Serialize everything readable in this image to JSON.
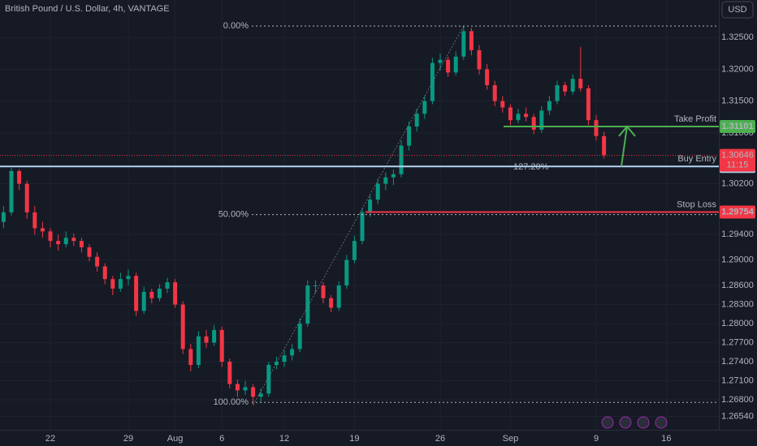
{
  "header": {
    "title": "British Pound / U.S. Dollar, 4h, VANTAGE",
    "currency": "USD"
  },
  "chart_data": {
    "type": "candlestick",
    "categories": [
      null,
      null,
      null,
      null,
      null,
      null,
      "22",
      null,
      null,
      null,
      null,
      null,
      null,
      null,
      null,
      null,
      "29",
      null,
      null,
      null,
      null,
      null,
      "Aug",
      null,
      null,
      null,
      null,
      null,
      "6",
      null,
      null,
      null,
      null,
      null,
      null,
      null,
      "12",
      null,
      null,
      null,
      null,
      null,
      null,
      null,
      null,
      "19",
      null,
      null,
      null,
      null,
      null,
      null,
      null,
      null,
      null,
      null,
      "26",
      null,
      null,
      null,
      null,
      null,
      null,
      null,
      null,
      "Sep",
      null,
      null,
      null,
      null,
      null,
      null,
      null,
      null,
      null,
      null,
      "9",
      null,
      null,
      null,
      null,
      null,
      null,
      null,
      null,
      "16",
      null,
      null
    ],
    "open": [
      1.296,
      1.2975,
      1.304,
      1.302,
      1.2975,
      1.295,
      1.2945,
      1.293,
      1.2925,
      1.2935,
      1.293,
      1.292,
      1.2905,
      1.289,
      1.287,
      1.2855,
      1.287,
      1.2875,
      1.282,
      1.285,
      1.284,
      1.2855,
      1.2865,
      1.283,
      1.276,
      1.2735,
      1.278,
      1.277,
      1.279,
      1.274,
      1.2705,
      1.2695,
      1.27,
      1.2685,
      1.269,
      1.2735,
      1.274,
      1.275,
      1.276,
      1.28,
      1.286,
      1.286,
      1.284,
      1.2825,
      1.286,
      1.29,
      1.293,
      1.2975,
      1.2995,
      1.302,
      1.303,
      1.3035,
      1.308,
      1.311,
      1.313,
      1.315,
      1.321,
      1.3215,
      1.3195,
      1.322,
      1.326,
      1.323,
      1.32,
      1.3175,
      1.315,
      1.314,
      1.312,
      1.313,
      1.3125,
      1.3105,
      1.3135,
      1.315,
      1.3175,
      1.3165,
      1.3185,
      1.317,
      1.312,
      1.3095,
      null,
      null,
      null,
      null,
      null,
      null,
      null,
      null,
      null,
      null
    ],
    "high": [
      1.2985,
      1.3045,
      1.3043,
      1.3025,
      1.2985,
      1.296,
      1.295,
      1.294,
      1.2945,
      1.2942,
      1.2935,
      1.2925,
      1.2912,
      1.2895,
      1.2875,
      1.288,
      1.2885,
      1.288,
      1.2858,
      1.2855,
      1.2862,
      1.2872,
      1.287,
      1.2835,
      1.2768,
      1.2788,
      1.279,
      1.2798,
      1.2795,
      1.2745,
      1.2712,
      1.271,
      1.2705,
      1.2698,
      1.274,
      1.2748,
      1.2758,
      1.2768,
      1.2808,
      1.2868,
      1.2868,
      1.2865,
      1.2845,
      1.2866,
      1.2908,
      1.2938,
      1.2982,
      1.3002,
      1.3028,
      1.3038,
      1.3042,
      1.3088,
      1.3118,
      1.3138,
      1.3158,
      1.3218,
      1.3225,
      1.322,
      1.3228,
      1.3268,
      1.3265,
      1.3238,
      1.3208,
      1.3182,
      1.3158,
      1.3145,
      1.3138,
      1.314,
      1.313,
      1.3142,
      1.3158,
      1.3182,
      1.318,
      1.3192,
      1.3235,
      1.3175,
      1.3128,
      1.3102,
      null,
      null,
      null,
      null,
      null,
      null,
      null,
      null,
      null,
      null
    ],
    "low": [
      1.295,
      1.297,
      1.301,
      1.2965,
      1.294,
      1.2935,
      1.292,
      1.2915,
      1.292,
      1.2922,
      1.2912,
      1.2898,
      1.2882,
      1.2862,
      1.2845,
      1.285,
      1.286,
      1.2812,
      1.2815,
      1.2832,
      1.2835,
      1.2848,
      1.2825,
      1.2752,
      1.2725,
      1.273,
      1.2762,
      1.2765,
      1.2732,
      1.2698,
      1.2685,
      1.2688,
      1.2672,
      1.2676,
      1.2685,
      1.2728,
      1.2732,
      1.2742,
      1.2755,
      1.2795,
      1.2848,
      1.2832,
      1.2818,
      1.282,
      1.2855,
      1.2895,
      1.2925,
      1.2968,
      1.2988,
      1.301,
      1.3018,
      1.303,
      1.3072,
      1.3102,
      1.3122,
      1.3145,
      1.3198,
      1.3188,
      1.319,
      1.3215,
      1.3222,
      1.3192,
      1.3168,
      1.3142,
      1.3132,
      1.3112,
      1.3115,
      1.3118,
      1.3098,
      1.31,
      1.3128,
      1.3145,
      1.3158,
      1.316,
      1.3165,
      1.3112,
      1.3088,
      1.306,
      null,
      null,
      null,
      null,
      null,
      null,
      null,
      null,
      null,
      null
    ],
    "close": [
      1.2975,
      1.304,
      1.302,
      1.2975,
      1.295,
      1.2945,
      1.293,
      1.2925,
      1.2935,
      1.293,
      1.292,
      1.2905,
      1.289,
      1.287,
      1.2855,
      1.287,
      1.2875,
      1.282,
      1.285,
      1.284,
      1.2855,
      1.2865,
      1.283,
      1.276,
      1.2735,
      1.278,
      1.277,
      1.279,
      1.274,
      1.2705,
      1.2695,
      1.27,
      1.2685,
      1.269,
      1.2735,
      1.274,
      1.275,
      1.276,
      1.28,
      1.286,
      1.286,
      1.284,
      1.2825,
      1.286,
      1.29,
      1.293,
      1.2975,
      1.2995,
      1.302,
      1.303,
      1.3035,
      1.308,
      1.311,
      1.313,
      1.315,
      1.321,
      1.3215,
      1.3195,
      1.322,
      1.326,
      1.323,
      1.32,
      1.3175,
      1.315,
      1.314,
      1.312,
      1.313,
      1.3125,
      1.3105,
      1.3135,
      1.315,
      1.3175,
      1.3165,
      1.3185,
      1.317,
      1.312,
      1.3095,
      1.3065,
      null,
      null,
      null,
      null,
      null,
      null,
      null,
      null,
      null,
      null
    ],
    "up_color": "#089981",
    "down_color": "#f23645",
    "ylim": [
      1.2633,
      1.3309
    ],
    "yticks": [
      {
        "value": 1.325,
        "label": "1.32500"
      },
      {
        "value": 1.32,
        "label": "1.32000"
      },
      {
        "value": 1.315,
        "label": "1.31500"
      },
      {
        "value": 1.31,
        "label": "1.31000"
      },
      {
        "value": 1.302,
        "label": "1.30200"
      },
      {
        "value": 1.294,
        "label": "1.29400"
      },
      {
        "value": 1.29,
        "label": "1.29000"
      },
      {
        "value": 1.286,
        "label": "1.28600"
      },
      {
        "value": 1.283,
        "label": "1.28300"
      },
      {
        "value": 1.28,
        "label": "1.28000"
      },
      {
        "value": 1.277,
        "label": "1.27700"
      },
      {
        "value": 1.274,
        "label": "1.27400"
      },
      {
        "value": 1.271,
        "label": "1.27100"
      },
      {
        "value": 1.268,
        "label": "1.26800"
      },
      {
        "value": 1.2654,
        "label": "1.26540"
      }
    ],
    "grid": true,
    "last_price": {
      "value": 1.30646,
      "countdown": "11:15"
    },
    "fib_levels": [
      {
        "label": "0.00%",
        "value": 1.3268
      },
      {
        "label": "50.00%",
        "value": 1.29715
      },
      {
        "label": "100.00%",
        "value": 1.2676
      },
      {
        "label": "127.20%",
        "value": 1.30472
      }
    ],
    "levels": [
      {
        "name": "Take Profit",
        "value": 1.31101,
        "color": "#4caf50"
      },
      {
        "name": "Buy Entry",
        "value": 1.30472,
        "color": "#b3d4f0"
      },
      {
        "name": "Stop Loss",
        "value": 1.29754,
        "color": "#f23645"
      }
    ]
  }
}
